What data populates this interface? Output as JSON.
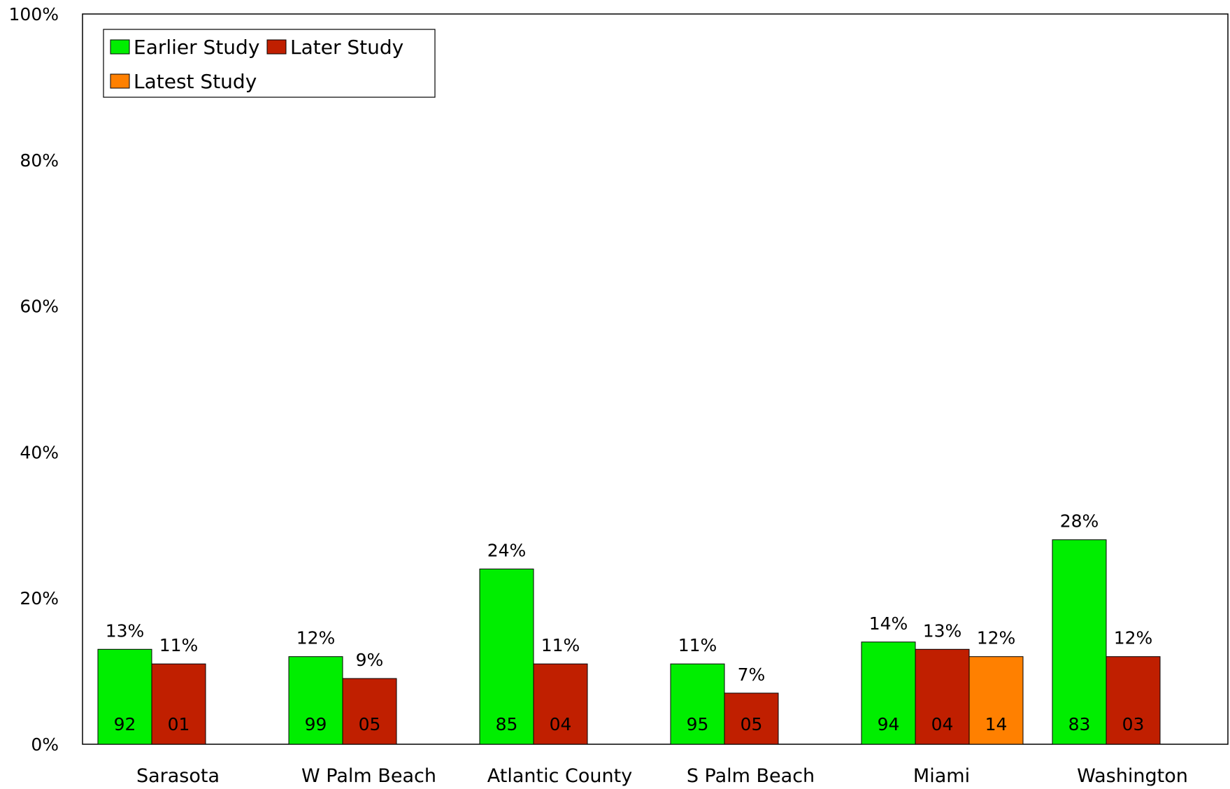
{
  "chart_data": {
    "type": "bar",
    "title": "",
    "xlabel": "",
    "ylabel": "",
    "ylim": [
      0,
      100
    ],
    "yticks": [
      "0%",
      "20%",
      "40%",
      "60%",
      "80%",
      "100%"
    ],
    "grid": false,
    "legend_position": "top-left",
    "categories": [
      "Sarasota",
      "W Palm Beach",
      "Atlantic County",
      "S Palm Beach",
      "Miami",
      "Washington"
    ],
    "series": [
      {
        "name": "Earlier Study",
        "color": "#00ee00",
        "values": [
          13,
          12,
          24,
          11,
          14,
          28
        ],
        "value_labels": [
          "13%",
          "12%",
          "24%",
          "11%",
          "14%",
          "28%"
        ],
        "inner_labels": [
          "92",
          "99",
          "85",
          "95",
          "94",
          "83"
        ]
      },
      {
        "name": "Later Study",
        "color": "#c01f00",
        "values": [
          11,
          9,
          11,
          7,
          13,
          12
        ],
        "value_labels": [
          "11%",
          "9%",
          "11%",
          "7%",
          "13%",
          "12%"
        ],
        "inner_labels": [
          "01",
          "05",
          "04",
          "05",
          "04",
          "03"
        ]
      },
      {
        "name": "Latest Study",
        "color": "#ff8000",
        "values": [
          null,
          null,
          null,
          null,
          12,
          null
        ],
        "value_labels": [
          null,
          null,
          null,
          null,
          "12%",
          null
        ],
        "inner_labels": [
          null,
          null,
          null,
          null,
          "14",
          null
        ]
      }
    ]
  }
}
